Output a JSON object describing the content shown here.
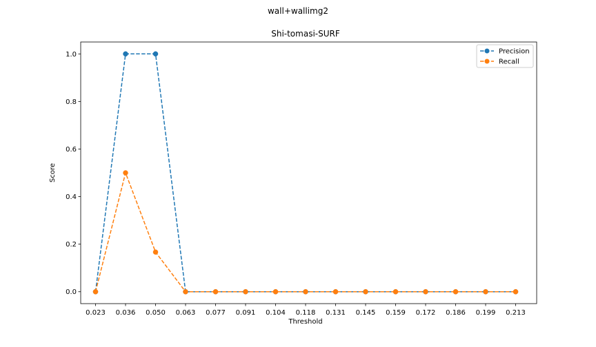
{
  "chart_data": {
    "type": "line",
    "suptitle": "wall+wallimg2",
    "title": "Shi-tomasi-SURF",
    "xlabel": "Threshold",
    "ylabel": "Score",
    "categories": [
      "0.023",
      "0.036",
      "0.050",
      "0.063",
      "0.077",
      "0.091",
      "0.104",
      "0.118",
      "0.131",
      "0.145",
      "0.159",
      "0.172",
      "0.186",
      "0.199",
      "0.213"
    ],
    "ylim": [
      -0.05,
      1.05
    ],
    "yticks": [
      "0.0",
      "0.2",
      "0.4",
      "0.6",
      "0.8",
      "1.0"
    ],
    "grid": false,
    "legend_position": "top-right",
    "series": [
      {
        "name": "Precision",
        "color": "#1f77b4",
        "line_style": "dashed",
        "marker": "circle",
        "values": [
          0,
          1.0,
          1.0,
          0,
          0,
          0,
          0,
          0,
          0,
          0,
          0,
          0,
          0,
          0,
          0
        ]
      },
      {
        "name": "Recall",
        "color": "#ff7f0e",
        "line_style": "dashed",
        "marker": "circle",
        "values": [
          0,
          0.5,
          0.1667,
          0,
          0,
          0,
          0,
          0,
          0,
          0,
          0,
          0,
          0,
          0,
          0
        ]
      }
    ]
  }
}
